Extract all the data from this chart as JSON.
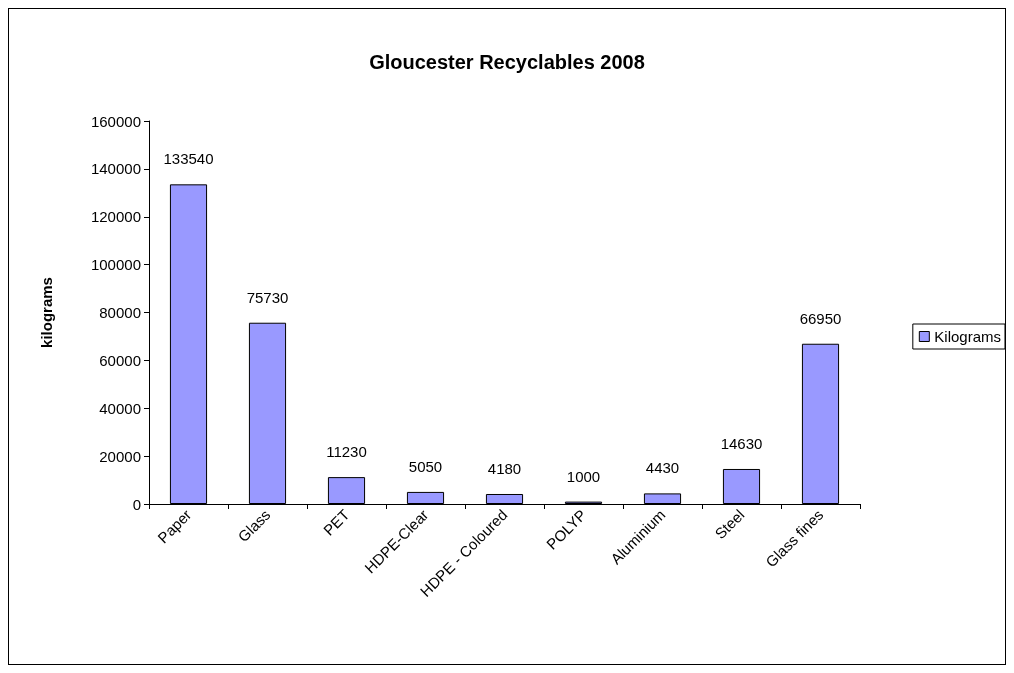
{
  "chart_data": {
    "type": "bar",
    "title": "Gloucester Recyclables 2008",
    "ylabel": "kilograms",
    "categories": [
      "Paper",
      "Glass",
      "PET",
      "HDPE-Clear",
      "HDPE - Coloured",
      "POLYP",
      "Aluminium",
      "Steel",
      "Glass fines"
    ],
    "series": [
      {
        "name": "Kilograms",
        "color": "#9999ff",
        "values": [
          133540,
          75730,
          11230,
          5050,
          4180,
          1000,
          4430,
          14630,
          66950
        ]
      }
    ],
    "ylim": [
      0,
      160000
    ],
    "yticks": [
      0,
      20000,
      40000,
      60000,
      80000,
      100000,
      120000,
      140000,
      160000
    ],
    "grid": false,
    "legend": "right",
    "data_labels": true
  }
}
